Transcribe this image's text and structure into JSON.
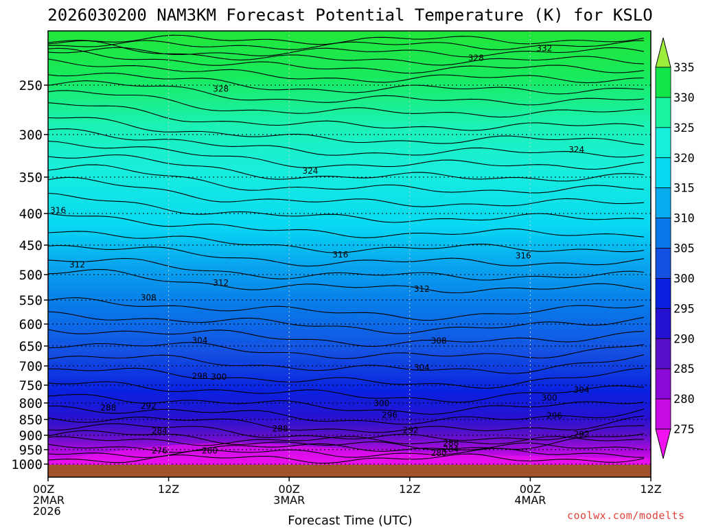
{
  "chart_data": {
    "type": "heatmap",
    "title": "2026030200 NAM3KM Forecast Potential Temperature (K) for KSLO",
    "xlabel": "Forecast Time (UTC)",
    "ylabel": "",
    "credit": "coolwx.com/modelts",
    "y_ticks": [
      "250",
      "300",
      "350",
      "400",
      "450",
      "500",
      "550",
      "600",
      "650",
      "700",
      "750",
      "800",
      "850",
      "900",
      "950",
      "1000"
    ],
    "y_tick_values": [
      250,
      300,
      350,
      400,
      450,
      500,
      550,
      600,
      650,
      700,
      750,
      800,
      850,
      900,
      950,
      1000
    ],
    "x_ticks": [
      {
        "hours": 0,
        "lines": [
          "00Z",
          "2MAR",
          "2026"
        ]
      },
      {
        "hours": 12,
        "lines": [
          "12Z"
        ]
      },
      {
        "hours": 24,
        "lines": [
          "00Z",
          "3MAR"
        ]
      },
      {
        "hours": 36,
        "lines": [
          "12Z"
        ]
      },
      {
        "hours": 48,
        "lines": [
          "00Z",
          "4MAR"
        ]
      },
      {
        "hours": 60,
        "lines": [
          "12Z"
        ]
      }
    ],
    "xlim_hours": [
      0,
      60
    ],
    "colorbar": {
      "ticks": [
        "335",
        "330",
        "325",
        "320",
        "315",
        "310",
        "305",
        "300",
        "295",
        "290",
        "285",
        "280",
        "275"
      ],
      "tick_values": [
        335,
        330,
        325,
        320,
        315,
        310,
        305,
        300,
        295,
        290,
        285,
        280,
        275
      ],
      "band_colors": [
        "#9cec3c",
        "#12e64a",
        "#1bf2a2",
        "#18eedc",
        "#08d8f2",
        "#08aaf0",
        "#0878e8",
        "#1450e2",
        "#0a22e0",
        "#2612d2",
        "#5a10c8",
        "#8c0ad8",
        "#c80ae4",
        "#f010f0"
      ]
    },
    "contour_labels": [
      {
        "text": "332",
        "hours": 49.4,
        "p": 212
      },
      {
        "text": "328",
        "hours": 42.6,
        "p": 222
      },
      {
        "text": "328",
        "hours": 17.2,
        "p": 253
      },
      {
        "text": "324",
        "hours": 26.1,
        "p": 342
      },
      {
        "text": "324",
        "hours": 52.6,
        "p": 317
      },
      {
        "text": "316",
        "hours": 1.0,
        "p": 395
      },
      {
        "text": "316",
        "hours": 29.1,
        "p": 465
      },
      {
        "text": "316",
        "hours": 47.3,
        "p": 467
      },
      {
        "text": "312",
        "hours": 2.9,
        "p": 482
      },
      {
        "text": "312",
        "hours": 17.2,
        "p": 515
      },
      {
        "text": "312",
        "hours": 37.2,
        "p": 527
      },
      {
        "text": "308",
        "hours": 10.0,
        "p": 544
      },
      {
        "text": "308",
        "hours": 38.9,
        "p": 637
      },
      {
        "text": "304",
        "hours": 15.1,
        "p": 636
      },
      {
        "text": "304",
        "hours": 37.2,
        "p": 703
      },
      {
        "text": "304",
        "hours": 53.1,
        "p": 762
      },
      {
        "text": "298",
        "hours": 15.1,
        "p": 725
      },
      {
        "text": "300",
        "hours": 17.0,
        "p": 727
      },
      {
        "text": "300",
        "hours": 33.2,
        "p": 799
      },
      {
        "text": "300",
        "hours": 49.9,
        "p": 784
      },
      {
        "text": "296",
        "hours": 34.0,
        "p": 834
      },
      {
        "text": "296",
        "hours": 50.4,
        "p": 836
      },
      {
        "text": "292",
        "hours": 10.0,
        "p": 807
      },
      {
        "text": "292",
        "hours": 36.1,
        "p": 881
      },
      {
        "text": "292",
        "hours": 53.1,
        "p": 895
      },
      {
        "text": "288",
        "hours": 6.0,
        "p": 813
      },
      {
        "text": "288",
        "hours": 23.1,
        "p": 877
      },
      {
        "text": "288",
        "hours": 40.1,
        "p": 925
      },
      {
        "text": "284",
        "hours": 11.1,
        "p": 884
      },
      {
        "text": "284",
        "hours": 40.1,
        "p": 946
      },
      {
        "text": "280",
        "hours": 16.1,
        "p": 951
      },
      {
        "text": "280",
        "hours": 38.9,
        "p": 960
      },
      {
        "text": "276",
        "hours": 11.1,
        "p": 951
      }
    ]
  }
}
